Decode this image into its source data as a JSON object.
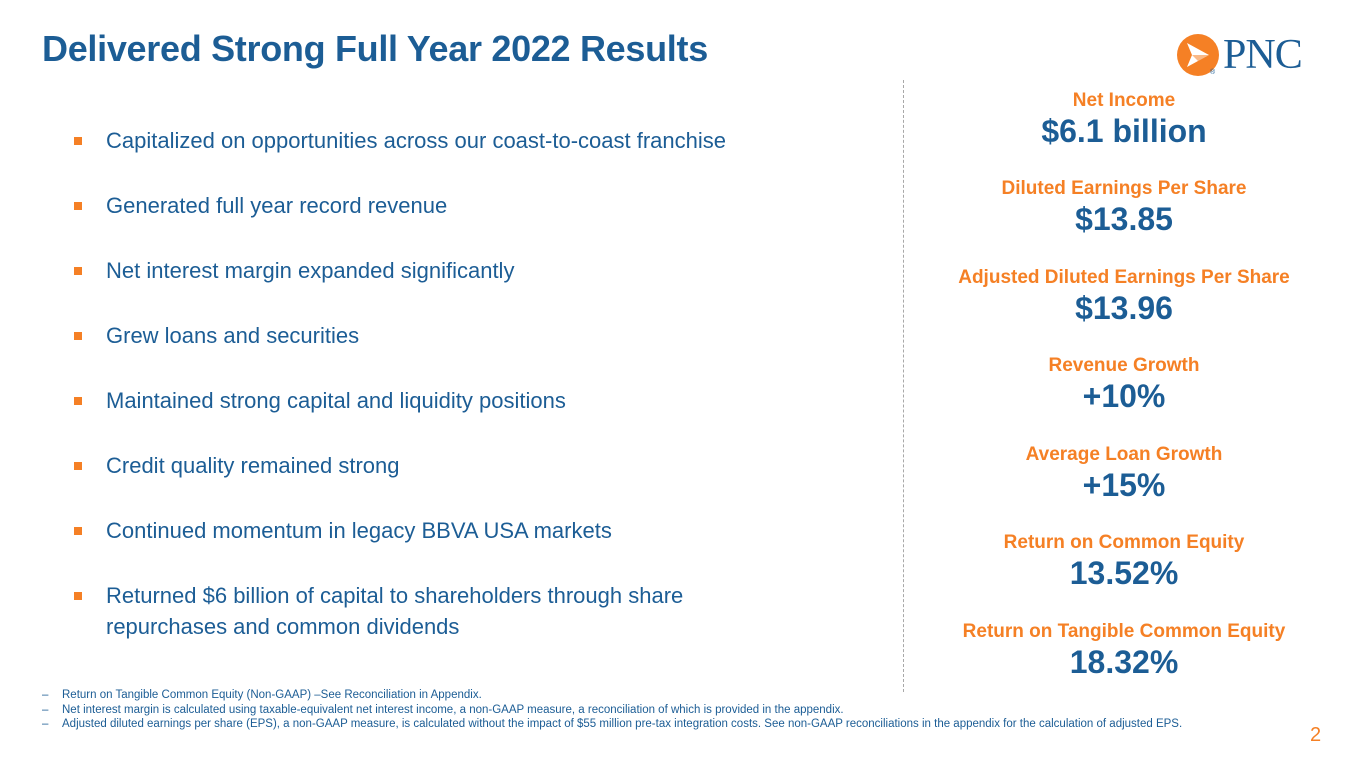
{
  "header": {
    "title": "Delivered Strong Full Year 2022 Results",
    "logo_text": "PNC",
    "logo_registered": "®"
  },
  "bullets": [
    "Capitalized on opportunities across our coast-to-coast franchise",
    "Generated full year record revenue",
    "Net interest margin expanded significantly",
    "Grew loans and securities",
    "Maintained strong capital and liquidity positions",
    "Credit quality remained strong",
    "Continued momentum in legacy BBVA USA markets",
    "Returned $6 billion of capital to shareholders through share repurchases and common dividends"
  ],
  "metrics": [
    {
      "label": "Net Income",
      "value": "$6.1 billion"
    },
    {
      "label": "Diluted Earnings Per Share",
      "value": "$13.85"
    },
    {
      "label": "Adjusted Diluted Earnings Per Share",
      "value": "$13.96"
    },
    {
      "label": "Revenue Growth",
      "value": "+10%"
    },
    {
      "label": "Average Loan Growth",
      "value": "+15%"
    },
    {
      "label": "Return on Common Equity",
      "value": "13.52%"
    },
    {
      "label": "Return on Tangible Common Equity",
      "value": "18.32%"
    }
  ],
  "footnotes": {
    "dash": "–",
    "items": [
      "Return on Tangible Common Equity (Non-GAAP) –See Reconciliation in Appendix.",
      "Net interest margin is calculated using taxable-equivalent net interest income, a non-GAAP measure, a reconciliation of which is provided in the appendix.",
      "Adjusted diluted earnings per share (EPS), a non-GAAP measure, is calculated without the impact of $55 million pre-tax integration costs. See non-GAAP reconciliations in the appendix for the calculation of adjusted EPS."
    ]
  },
  "page_number": "2",
  "colors": {
    "brand_blue": "#1c5d95",
    "brand_orange": "#f58025"
  },
  "icons": {
    "logo": "pnc-logo-icon",
    "bullet": "square-bullet-icon"
  }
}
